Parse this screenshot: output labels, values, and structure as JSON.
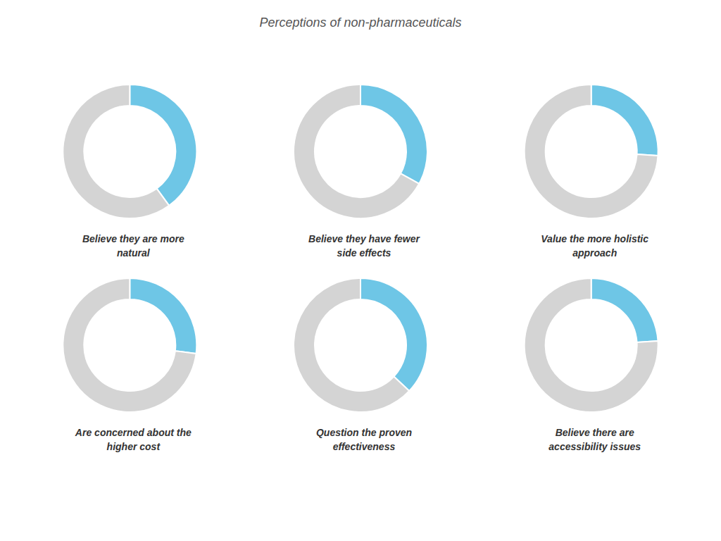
{
  "title": "Perceptions of non-pharmaceuticals",
  "chart_data": [
    {
      "type": "pie",
      "title": "Believe they are more\nnatural",
      "values": [
        40,
        60
      ],
      "colors": [
        "#6ec6e6",
        "#d4d4d4"
      ]
    },
    {
      "type": "pie",
      "title": "Believe they have fewer\nside effects",
      "values": [
        33,
        67
      ],
      "colors": [
        "#6ec6e6",
        "#d4d4d4"
      ]
    },
    {
      "type": "pie",
      "title": "Value the more holistic\napproach",
      "values": [
        26,
        74
      ],
      "colors": [
        "#6ec6e6",
        "#d4d4d4"
      ]
    },
    {
      "type": "pie",
      "title": "Are concerned about the\nhigher cost",
      "values": [
        27,
        73
      ],
      "colors": [
        "#6ec6e6",
        "#d4d4d4"
      ]
    },
    {
      "type": "pie",
      "title": "Question the proven\neffectiveness",
      "values": [
        37,
        63
      ],
      "colors": [
        "#6ec6e6",
        "#d4d4d4"
      ]
    },
    {
      "type": "pie",
      "title": "Believe there are\naccessibility issues",
      "values": [
        24,
        76
      ],
      "colors": [
        "#6ec6e6",
        "#d4d4d4"
      ]
    }
  ]
}
